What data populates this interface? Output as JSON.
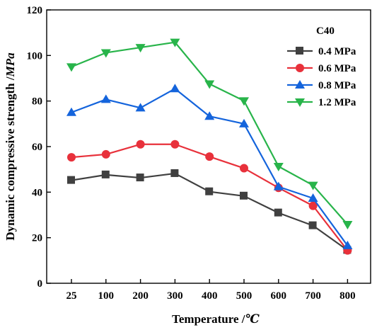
{
  "chart_data": {
    "type": "line",
    "title": "",
    "xlabel": "Temperature /℃",
    "ylabel": "Dynamic compressive strength /MPa",
    "ylabel_parts": {
      "main": "Dynamic compressive strength /",
      "unit": "MPa"
    },
    "xlabel_parts": {
      "main": "Temperature /",
      "unit": "℃"
    },
    "categories": [
      "25",
      "100",
      "200",
      "300",
      "400",
      "500",
      "600",
      "700",
      "800"
    ],
    "x": [
      25,
      100,
      200,
      300,
      400,
      500,
      600,
      700,
      800
    ],
    "ylim": [
      0,
      120
    ],
    "yticks": [
      0,
      20,
      40,
      60,
      80,
      100,
      120
    ],
    "grid": false,
    "legend": {
      "title": "C40",
      "placement": "top-right"
    },
    "series": [
      {
        "name": "0.4 MPa",
        "color": "#404040",
        "marker": "square",
        "values": [
          45.2,
          47.6,
          46.3,
          48.2,
          40.2,
          38.3,
          30.9,
          25.3,
          14.5
        ]
      },
      {
        "name": "0.6 MPa",
        "color": "#e8313b",
        "marker": "circle",
        "values": [
          55.3,
          56.6,
          61.0,
          61.0,
          55.6,
          50.5,
          41.9,
          34.0,
          14.4
        ]
      },
      {
        "name": "0.8 MPa",
        "color": "#1464dc",
        "marker": "triangle-up",
        "values": [
          75.0,
          80.7,
          77.0,
          85.4,
          73.3,
          70.0,
          42.4,
          37.3,
          16.5
        ]
      },
      {
        "name": "1.2 MPa",
        "color": "#28b44a",
        "marker": "triangle-down",
        "values": [
          95.0,
          101.2,
          103.5,
          105.8,
          87.5,
          80.1,
          51.3,
          43.0,
          25.8
        ]
      }
    ]
  }
}
